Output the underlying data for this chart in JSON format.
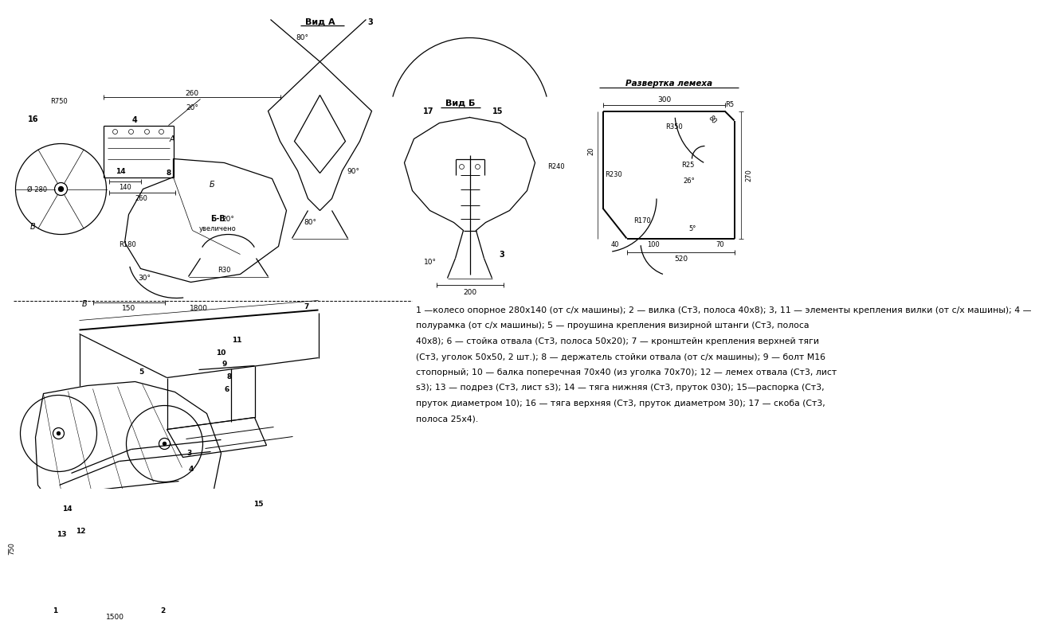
{
  "bg_color": "#ffffff",
  "legend_text_line1": "1 —колесо опорное 280x140 (от с/х машины); 2 — вилка (Ст3, полоса 40x8); 3, 11 — элементы крепления вилки (от с/х машины); 4 —",
  "legend_text_line2": "полурамка (от с/х машины); 5 — проушина крепления визирной штанги (Ст3, полоса",
  "legend_text_line3": "40x8); 6 — стойка отвала (Ст3, полоса 50x20); 7 — кронштейн крепления верхней тяги",
  "legend_text_line4": "(Ст3, уголок 50x50, 2 шт.); 8 — держатель стойки отвала (от с/х машины); 9 — болт M16",
  "legend_text_line5": "стопорный; 10 — балка поперечная 70x40 (из уголка 70x70); 12 — лемех отвала (Ст3, лист",
  "legend_text_line6": "s3); 13 — подрез (Ст3, лист s3); 14 — тяга нижняя (Ст3, пруток 030); 15—распорка (Ст3,",
  "legend_text_line7": "пруток диаметром 10); 16 — тяга верхняя (Ст3, пруток диаметром 30); 17 — скоба (Ст3,",
  "legend_text_line8": "полоса 25x4)."
}
